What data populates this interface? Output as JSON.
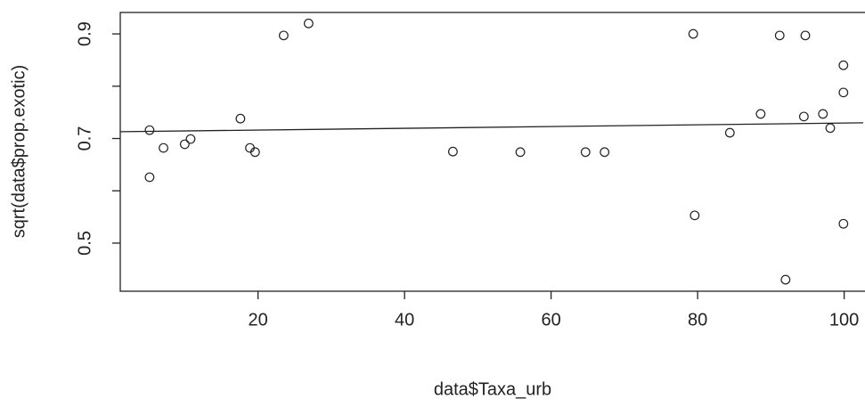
{
  "chart_data": {
    "type": "scatter",
    "x_label": "data$Taxa_urb",
    "y_label": "sqrt(data$prop.exotic)",
    "xlim": [
      1.2,
      102.6
    ],
    "ylim": [
      0.408,
      0.941
    ],
    "xticks": [
      20,
      40,
      60,
      80,
      100
    ],
    "yticks": [
      0.5,
      {
        "value": 0.6,
        "label": null
      },
      0.7,
      {
        "value": 0.8,
        "label": null
      },
      0.9
    ],
    "series": [
      {
        "color": "#222222",
        "x": [
          5.2,
          5.2,
          7.1,
          10.0,
          10.8,
          17.6,
          18.9,
          19.6,
          23.5,
          26.9,
          46.6,
          55.8,
          64.7,
          67.3,
          79.4,
          79.6,
          84.4,
          88.6,
          91.2,
          94.7,
          92.0,
          94.5,
          97.1,
          98.1,
          99.9,
          99.9,
          99.9
        ],
        "values": [
          0.716,
          0.626,
          0.682,
          0.689,
          0.699,
          0.738,
          0.682,
          0.674,
          0.897,
          0.92,
          0.675,
          0.674,
          0.674,
          0.674,
          0.9,
          0.553,
          0.711,
          0.747,
          0.897,
          0.897,
          0.43,
          0.742,
          0.747,
          0.72,
          0.84,
          0.788,
          0.537
        ]
      }
    ],
    "fit_line": {
      "x": [
        1.2,
        102.6
      ],
      "values": [
        0.713,
        0.73
      ]
    }
  }
}
